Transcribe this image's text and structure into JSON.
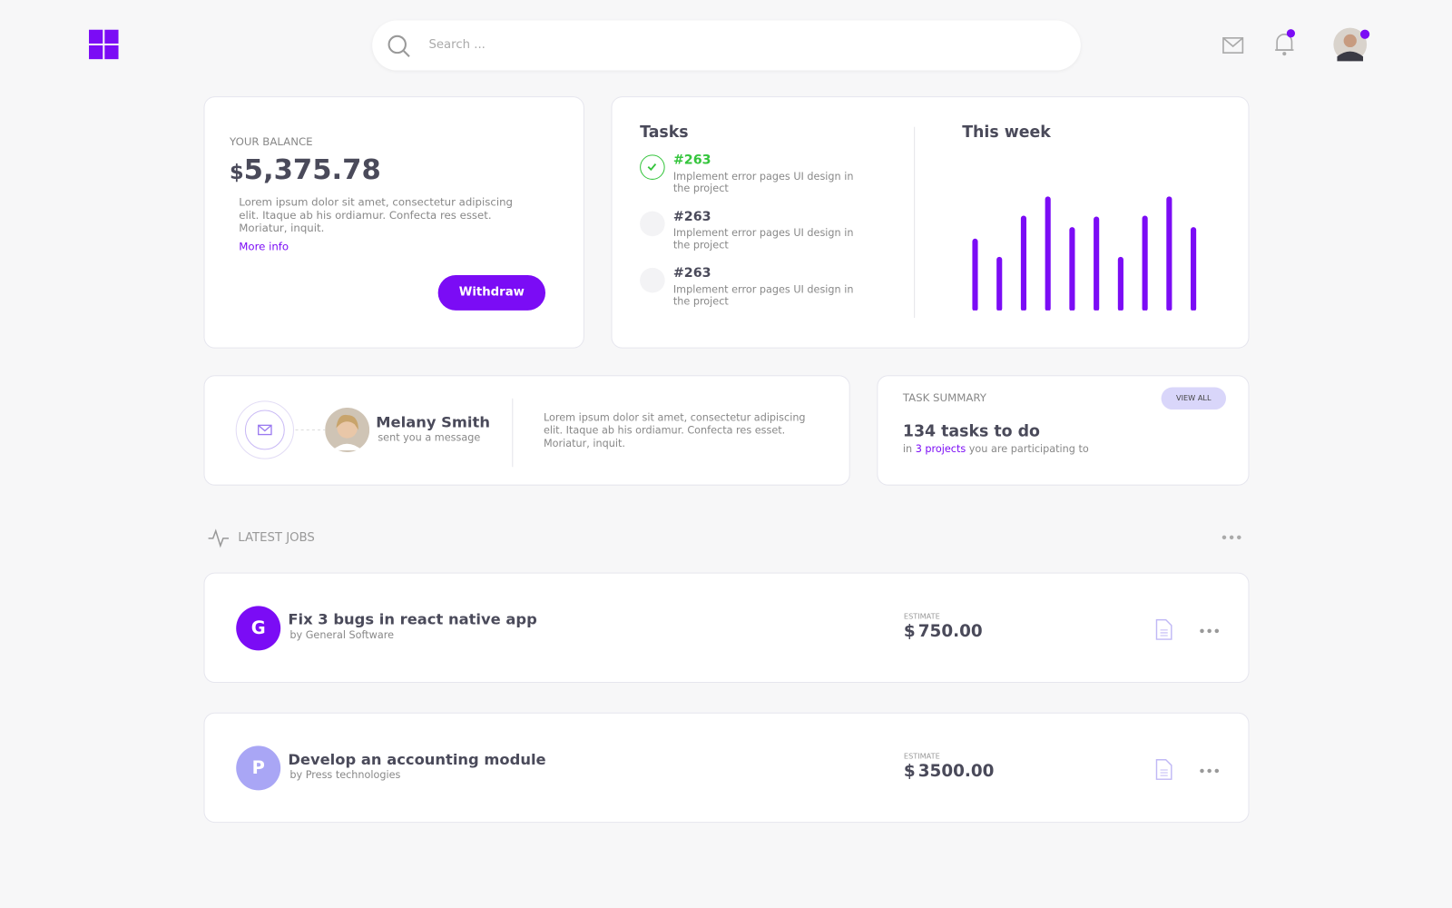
{
  "header": {
    "search_placeholder": "Search ..."
  },
  "balance": {
    "label": "YOUR BALANCE",
    "currency": "$",
    "amount": "5,375.78",
    "description": "Lorem ipsum dolor sit amet, consectetur adipiscing elit. Itaque ab his ordiamur. Confecta res esset. Moriatur, inquit.",
    "link": "More info",
    "button": "Withdraw"
  },
  "tasks": {
    "title": "Tasks",
    "items": [
      {
        "id": "#263",
        "text": "Implement error pages UI design in the project",
        "done": true
      },
      {
        "id": "#263",
        "text": "Implement error pages UI design in the project",
        "done": false
      },
      {
        "id": "#263",
        "text": "Implement error pages UI design in the project",
        "done": false
      }
    ]
  },
  "this_week": {
    "title": "This week",
    "values": [
      70,
      51,
      94,
      114,
      82,
      93,
      51,
      94,
      114,
      82
    ],
    "color": "#7b0cf5"
  },
  "message": {
    "name": "Melany Smith",
    "action": "sent you a message",
    "text": "Lorem ipsum dolor sit amet, consectetur adipiscing elit. Itaque ab his ordiamur. Confecta res esset. Moriatur, inquit."
  },
  "task_summary": {
    "label": "TASK SUMMARY",
    "button": "VIEW ALL",
    "headline": "134 tasks to do",
    "prefix": "in",
    "link": "3 projects",
    "suffix": "you are participating to"
  },
  "latest_jobs": {
    "title": "LATEST JOBS",
    "jobs": [
      {
        "initial": "G",
        "title": "Fix 3 bugs in react native app",
        "by": "by General Software",
        "estimate_label": "ESTIMATE",
        "currency": "$",
        "amount": "750.00",
        "color": "#7b0cf5"
      },
      {
        "initial": "P",
        "title": "Develop an accounting module",
        "by": "by Press technologies",
        "estimate_label": "ESTIMATE",
        "currency": "$",
        "amount": "3500.00",
        "color": "#a9a6f5"
      }
    ]
  }
}
